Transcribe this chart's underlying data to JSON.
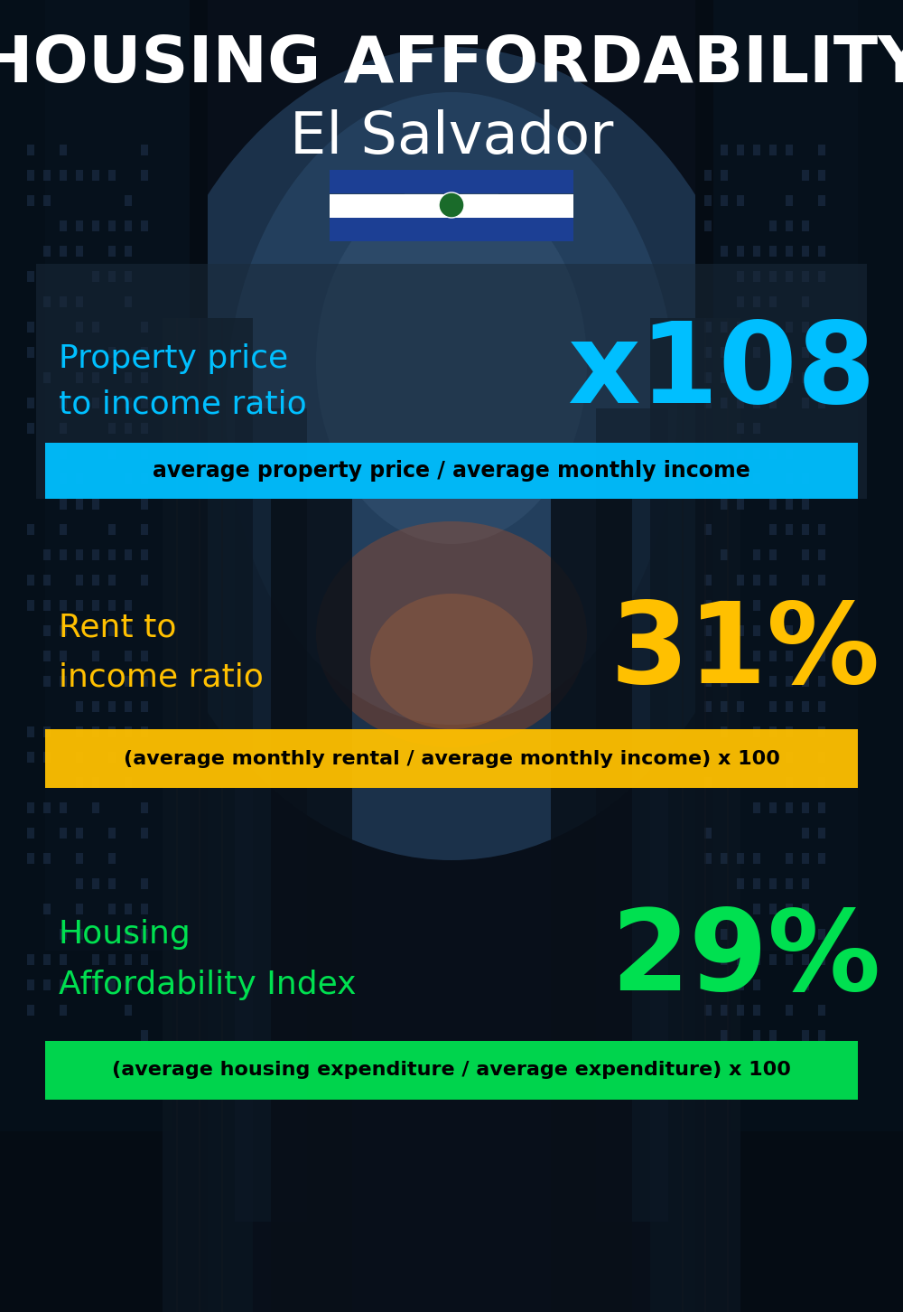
{
  "title_line1": "HOUSING AFFORDABILITY",
  "title_line2": "El Salvador",
  "bg_color": "#080f1a",
  "section1_label": "Property price\nto income ratio",
  "section1_value": "x108",
  "section1_label_color": "#00bfff",
  "section1_value_color": "#00bfff",
  "section1_formula": "average property price / average monthly income",
  "section1_formula_bg": "#00bfff",
  "section2_label": "Rent to\nincome ratio",
  "section2_value": "31%",
  "section2_label_color": "#ffc000",
  "section2_value_color": "#ffc000",
  "section2_formula": "(average monthly rental / average monthly income) x 100",
  "section2_formula_bg": "#ffc000",
  "section3_label": "Housing\nAffordability Index",
  "section3_value": "29%",
  "section3_label_color": "#00e050",
  "section3_value_color": "#00e050",
  "section3_formula": "(average housing expenditure / average expenditure) x 100",
  "section3_formula_bg": "#00e050",
  "title_color": "#ffffff",
  "formula_text_color": "#000000",
  "flag_blue": "#1c3f94",
  "flag_white": "#ffffff",
  "sky_color": "#2a4a6a",
  "warm_glow": "#c87030"
}
